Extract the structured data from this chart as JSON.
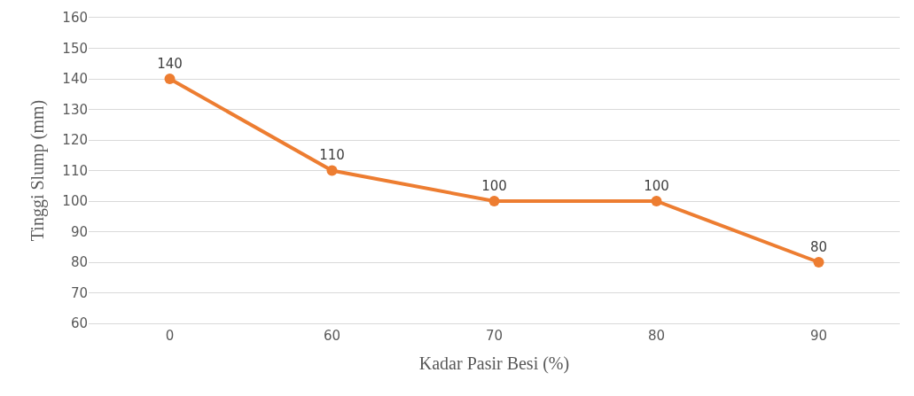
{
  "chart_data": {
    "type": "line",
    "xlabel": "Kadar Pasir Besi (%)",
    "ylabel": "Tinggi Slump (mm)",
    "categories": [
      "0",
      "60",
      "70",
      "80",
      "90"
    ],
    "series": [
      {
        "color": "#ed7d31",
        "values": [
          140,
          110,
          100,
          100,
          80
        ]
      }
    ],
    "ylim": [
      60,
      160
    ],
    "yticks": [
      60,
      70,
      80,
      90,
      100,
      110,
      120,
      130,
      140,
      150,
      160
    ],
    "grid": "y",
    "marker": "circle",
    "line_style": "solid",
    "data_labels": true,
    "legend": false
  }
}
